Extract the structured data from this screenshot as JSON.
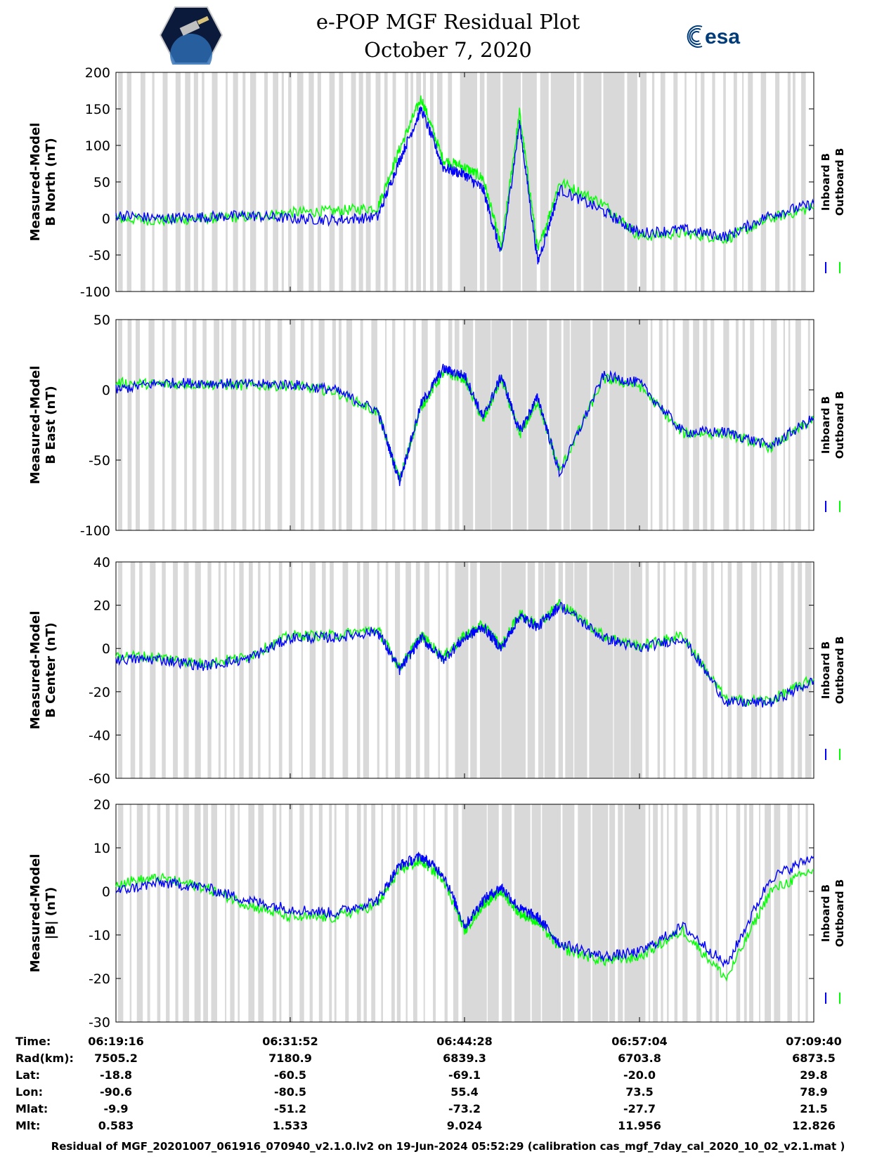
{
  "title": "e-POP MGF Residual Plot",
  "subtitle": "October 7, 2020",
  "logos": {
    "left": "cassiope-mission-logo",
    "right_text": "esa"
  },
  "colors": {
    "inboard": "#0000ff",
    "outboard": "#00ff00",
    "shading": "#d9d9d9"
  },
  "chart_data": [
    {
      "type": "line",
      "ylabel": [
        "Measured-Model",
        "B North (nT)"
      ],
      "ylim": [
        -100,
        200
      ],
      "yticks": [
        "200",
        "150",
        "100",
        "50",
        "0",
        "-50",
        "-100"
      ],
      "legend": [
        "Inboard B",
        "Outboard B"
      ],
      "x": [
        "06:19:16",
        "06:22:25",
        "06:25:34",
        "06:28:43",
        "06:31:52",
        "06:35:01",
        "06:38:10",
        "06:39:45",
        "06:41:19",
        "06:42:54",
        "06:44:28",
        "06:45:47",
        "06:47:06",
        "06:48:25",
        "06:49:44",
        "06:51:19",
        "06:54:28",
        "06:57:04",
        "07:00:13",
        "07:03:22",
        "07:06:31",
        "07:09:40"
      ],
      "series": [
        {
          "name": "Inboard B",
          "values": [
            5,
            0,
            2,
            4,
            0,
            -2,
            2,
            80,
            150,
            70,
            60,
            40,
            -50,
            130,
            -60,
            40,
            10,
            -20,
            -15,
            -25,
            5,
            20
          ]
        },
        {
          "name": "Outboard B",
          "values": [
            0,
            -3,
            0,
            2,
            8,
            10,
            15,
            95,
            165,
            80,
            70,
            55,
            -40,
            145,
            -45,
            50,
            20,
            -25,
            -20,
            -28,
            0,
            15
          ]
        }
      ]
    },
    {
      "type": "line",
      "ylabel": [
        "Measured-Model",
        "B East (nT)"
      ],
      "ylim": [
        -100,
        50
      ],
      "yticks": [
        "50",
        "0",
        "-50",
        "-100"
      ],
      "legend": [
        "Inboard B",
        "Outboard B"
      ],
      "x": [
        "06:19:16",
        "06:22:25",
        "06:25:34",
        "06:28:43",
        "06:31:52",
        "06:35:01",
        "06:38:10",
        "06:39:45",
        "06:41:19",
        "06:42:54",
        "06:44:28",
        "06:45:47",
        "06:47:06",
        "06:48:25",
        "06:49:44",
        "06:51:19",
        "06:54:28",
        "06:57:04",
        "07:00:13",
        "07:03:22",
        "07:06:31",
        "07:09:40"
      ],
      "series": [
        {
          "name": "Inboard B",
          "values": [
            0,
            5,
            5,
            4,
            4,
            0,
            -15,
            -65,
            -10,
            15,
            10,
            -20,
            10,
            -30,
            -5,
            -60,
            10,
            5,
            -30,
            -30,
            -40,
            -20
          ]
        },
        {
          "name": "Outboard B",
          "values": [
            5,
            4,
            4,
            3,
            3,
            -1,
            -16,
            -64,
            -12,
            12,
            8,
            -22,
            8,
            -32,
            -8,
            -58,
            8,
            3,
            -31,
            -31,
            -41,
            -21
          ]
        }
      ]
    },
    {
      "type": "line",
      "ylabel": [
        "Measured-Model",
        "B Center (nT)"
      ],
      "ylim": [
        -60,
        40
      ],
      "yticks": [
        "40",
        "20",
        "0",
        "-20",
        "-40",
        "-60"
      ],
      "legend": [
        "Inboard B",
        "Outboard B"
      ],
      "x": [
        "06:19:16",
        "06:22:25",
        "06:25:34",
        "06:28:43",
        "06:31:52",
        "06:35:01",
        "06:38:10",
        "06:39:45",
        "06:41:19",
        "06:42:54",
        "06:44:28",
        "06:45:47",
        "06:47:06",
        "06:48:25",
        "06:49:44",
        "06:51:19",
        "06:54:28",
        "06:57:04",
        "07:00:13",
        "07:03:22",
        "07:06:31",
        "07:09:40"
      ],
      "series": [
        {
          "name": "Inboard B",
          "values": [
            -5,
            -5,
            -8,
            -5,
            5,
            5,
            8,
            -10,
            5,
            -5,
            5,
            10,
            0,
            15,
            10,
            20,
            5,
            0,
            5,
            -25,
            -25,
            -15
          ]
        },
        {
          "name": "Outboard B",
          "values": [
            -3,
            -4,
            -7,
            -4,
            6,
            6,
            9,
            -9,
            6,
            -4,
            6,
            11,
            1,
            16,
            11,
            21,
            6,
            1,
            6,
            -24,
            -24,
            -14
          ]
        }
      ]
    },
    {
      "type": "line",
      "ylabel": [
        "Measured-Model",
        "|B| (nT)"
      ],
      "ylim": [
        -30,
        20
      ],
      "yticks": [
        "20",
        "10",
        "0",
        "-10",
        "-20",
        "-30"
      ],
      "legend": [
        "Inboard B",
        "Outboard B"
      ],
      "x": [
        "06:19:16",
        "06:22:25",
        "06:25:34",
        "06:28:43",
        "06:31:52",
        "06:35:01",
        "06:38:10",
        "06:39:45",
        "06:41:19",
        "06:42:54",
        "06:44:28",
        "06:45:47",
        "06:47:06",
        "06:48:25",
        "06:49:44",
        "06:51:19",
        "06:54:28",
        "06:57:04",
        "07:00:13",
        "07:03:22",
        "07:06:31",
        "07:09:40"
      ],
      "series": [
        {
          "name": "Inboard B",
          "values": [
            0,
            2,
            1,
            -2,
            -4,
            -5,
            -2,
            6,
            8,
            4,
            -8,
            -2,
            1,
            -4,
            -6,
            -12,
            -15,
            -14,
            -8,
            -17,
            3,
            8
          ]
        },
        {
          "name": "Outboard B",
          "values": [
            2,
            3,
            1,
            -3,
            -6,
            -6,
            -3,
            5,
            7,
            3,
            -9,
            -3,
            0,
            -5,
            -7,
            -13,
            -16,
            -15,
            -9,
            -20,
            0,
            5
          ]
        }
      ]
    }
  ],
  "table": {
    "labels": [
      "Time:",
      "Rad(km):",
      "Lat:",
      "Lon:",
      "Mlat:",
      "Mlt:"
    ],
    "columns": [
      [
        "06:19:16",
        "7505.2",
        "-18.8",
        "-90.6",
        "-9.9",
        "0.583"
      ],
      [
        "06:31:52",
        "7180.9",
        "-60.5",
        "-80.5",
        "-51.2",
        "1.533"
      ],
      [
        "06:44:28",
        "6839.3",
        "-69.1",
        "55.4",
        "-73.2",
        "9.024"
      ],
      [
        "06:57:04",
        "6703.8",
        "-20.0",
        "73.5",
        "-27.7",
        "11.956"
      ],
      [
        "07:09:40",
        "6873.5",
        "29.8",
        "78.9",
        "21.5",
        "12.826"
      ]
    ]
  },
  "footer": "Residual of MGF_20201007_061916_070940_v2.1.0.lv2 on 19-Jun-2024 05:52:29 (calibration cas_mgf_7day_cal_2020_10_02_v2.1.mat )"
}
